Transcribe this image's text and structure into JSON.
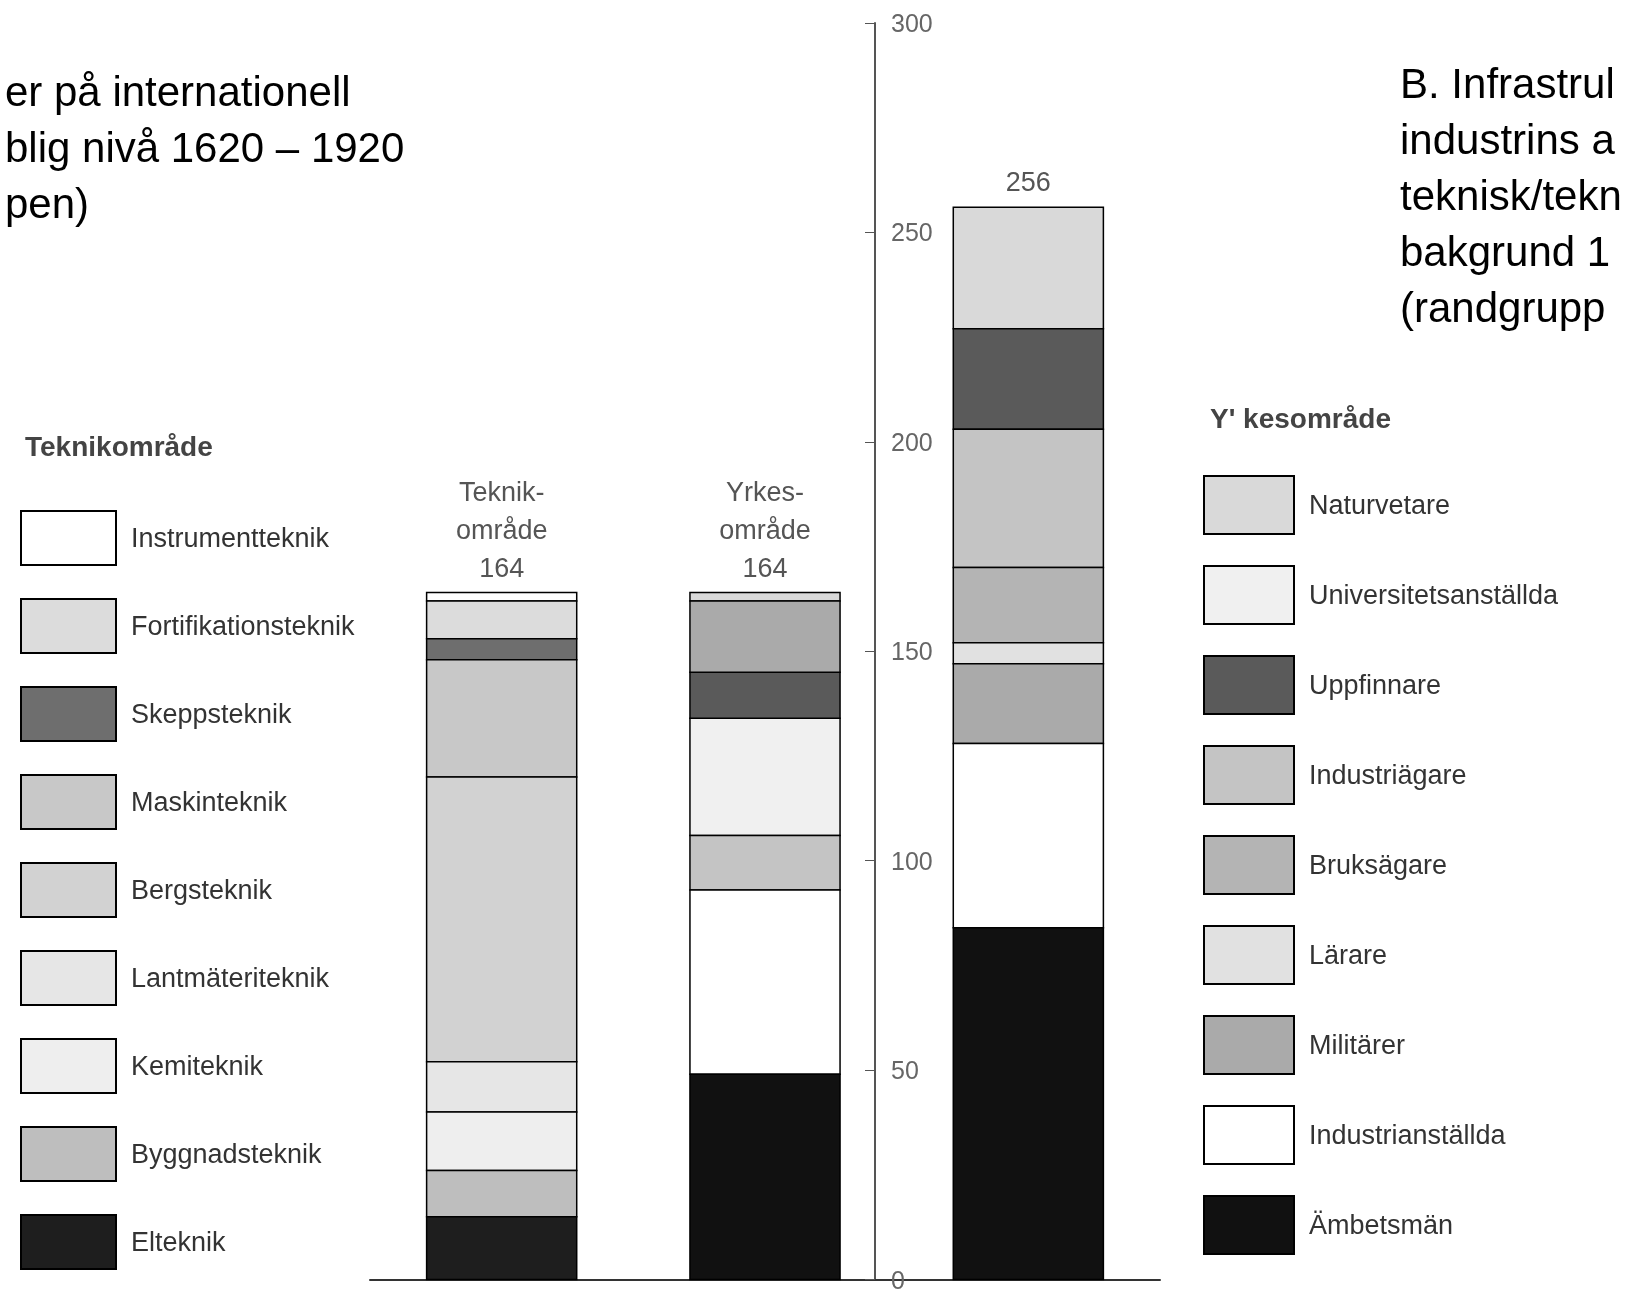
{
  "chart_data": {
    "type": "bar",
    "title": "er på internationell\nblig nivå 1620 – 1920\npen)",
    "subtitle": "B. Infrastrul\nindustrins a\nteknisk/tekn\nbakgrund 1\n(randgrupp",
    "legend_title": "Teknikområde",
    "annotations": [
      "Y' kesområde"
    ],
    "categories": [
      "Teknik-\nområde",
      "Yrkes-\nområde",
      null
    ],
    "totals": [
      "164",
      "164",
      "256"
    ],
    "ylim": [
      0,
      300
    ],
    "yticks": [
      0,
      50,
      100,
      150,
      200,
      250,
      300
    ],
    "grid": false,
    "legend": "left",
    "tick_labels": "y",
    "series": [
      {
        "name": "Instrumentteknik",
        "color": "#ffffff",
        "values": [
          2,
          null,
          null
        ],
        "base": [
          162,
          null,
          null
        ]
      },
      {
        "name": "Fortifikationsteknik",
        "color": "#dcdcdc",
        "values": [
          9,
          null,
          null
        ],
        "base": [
          153,
          null,
          null
        ]
      },
      {
        "name": "Skeppsteknik",
        "color": "#6e6e6e",
        "values": [
          5,
          null,
          null
        ],
        "base": [
          148,
          null,
          null
        ]
      },
      {
        "name": "Maskinteknik",
        "color": "#c8c8c8",
        "values": [
          28,
          null,
          null
        ],
        "base": [
          120,
          null,
          null
        ]
      },
      {
        "name": "Bergsteknik",
        "color": "#d2d2d2",
        "values": [
          68,
          null,
          null
        ],
        "base": [
          52,
          null,
          null
        ]
      },
      {
        "name": "Lantmäteriteknik",
        "color": "#e6e6e6",
        "values": [
          12,
          null,
          null
        ],
        "base": [
          40,
          null,
          null
        ]
      },
      {
        "name": "Kemiteknik",
        "color": "#eeeeee",
        "values": [
          14,
          null,
          null
        ],
        "base": [
          26,
          null,
          null
        ]
      },
      {
        "name": "Byggnadsteknik",
        "color": "#bebebe",
        "values": [
          11,
          null,
          null
        ],
        "base": [
          15,
          null,
          null
        ]
      },
      {
        "name": "Elteknik",
        "color": "#1e1e1e",
        "values": [
          15,
          null,
          null
        ],
        "base": [
          0,
          null,
          null
        ]
      },
      {
        "name": "Naturvetare",
        "color": "#d9d9d9",
        "values": [
          null,
          2,
          29
        ],
        "base": [
          null,
          162,
          227
        ]
      },
      {
        "name": "Universitetsanställda",
        "color": "#f0f0f0",
        "values": [
          null,
          28,
          null
        ],
        "base": [
          null,
          106,
          null
        ]
      },
      {
        "name": "Uppfinnare",
        "color": "#5a5a5a",
        "values": [
          null,
          11,
          24
        ],
        "base": [
          null,
          134,
          203
        ]
      },
      {
        "name": "Industriägare",
        "color": "#c4c4c4",
        "values": [
          null,
          13,
          33
        ],
        "base": [
          null,
          93,
          170
        ]
      },
      {
        "name": "Bruksägare",
        "color": "#b4b4b4",
        "values": [
          null,
          null,
          18
        ],
        "base": [
          null,
          null,
          152
        ]
      },
      {
        "name": "Lärare",
        "color": "#e1e1e1",
        "values": [
          null,
          null,
          5
        ],
        "base": [
          null,
          null,
          147
        ]
      },
      {
        "name": "Militärer",
        "color": "#aaaaaa",
        "values": [
          null,
          17,
          19
        ],
        "base": [
          null,
          145,
          128
        ]
      },
      {
        "name": "Industrianställda",
        "color": "#ffffff",
        "values": [
          null,
          44,
          44
        ],
        "base": [
          null,
          49,
          84
        ]
      },
      {
        "name": "Ämbetsmän",
        "color": "#111111",
        "values": [
          null,
          49,
          84
        ],
        "base": [
          null,
          0,
          0
        ]
      }
    ]
  }
}
